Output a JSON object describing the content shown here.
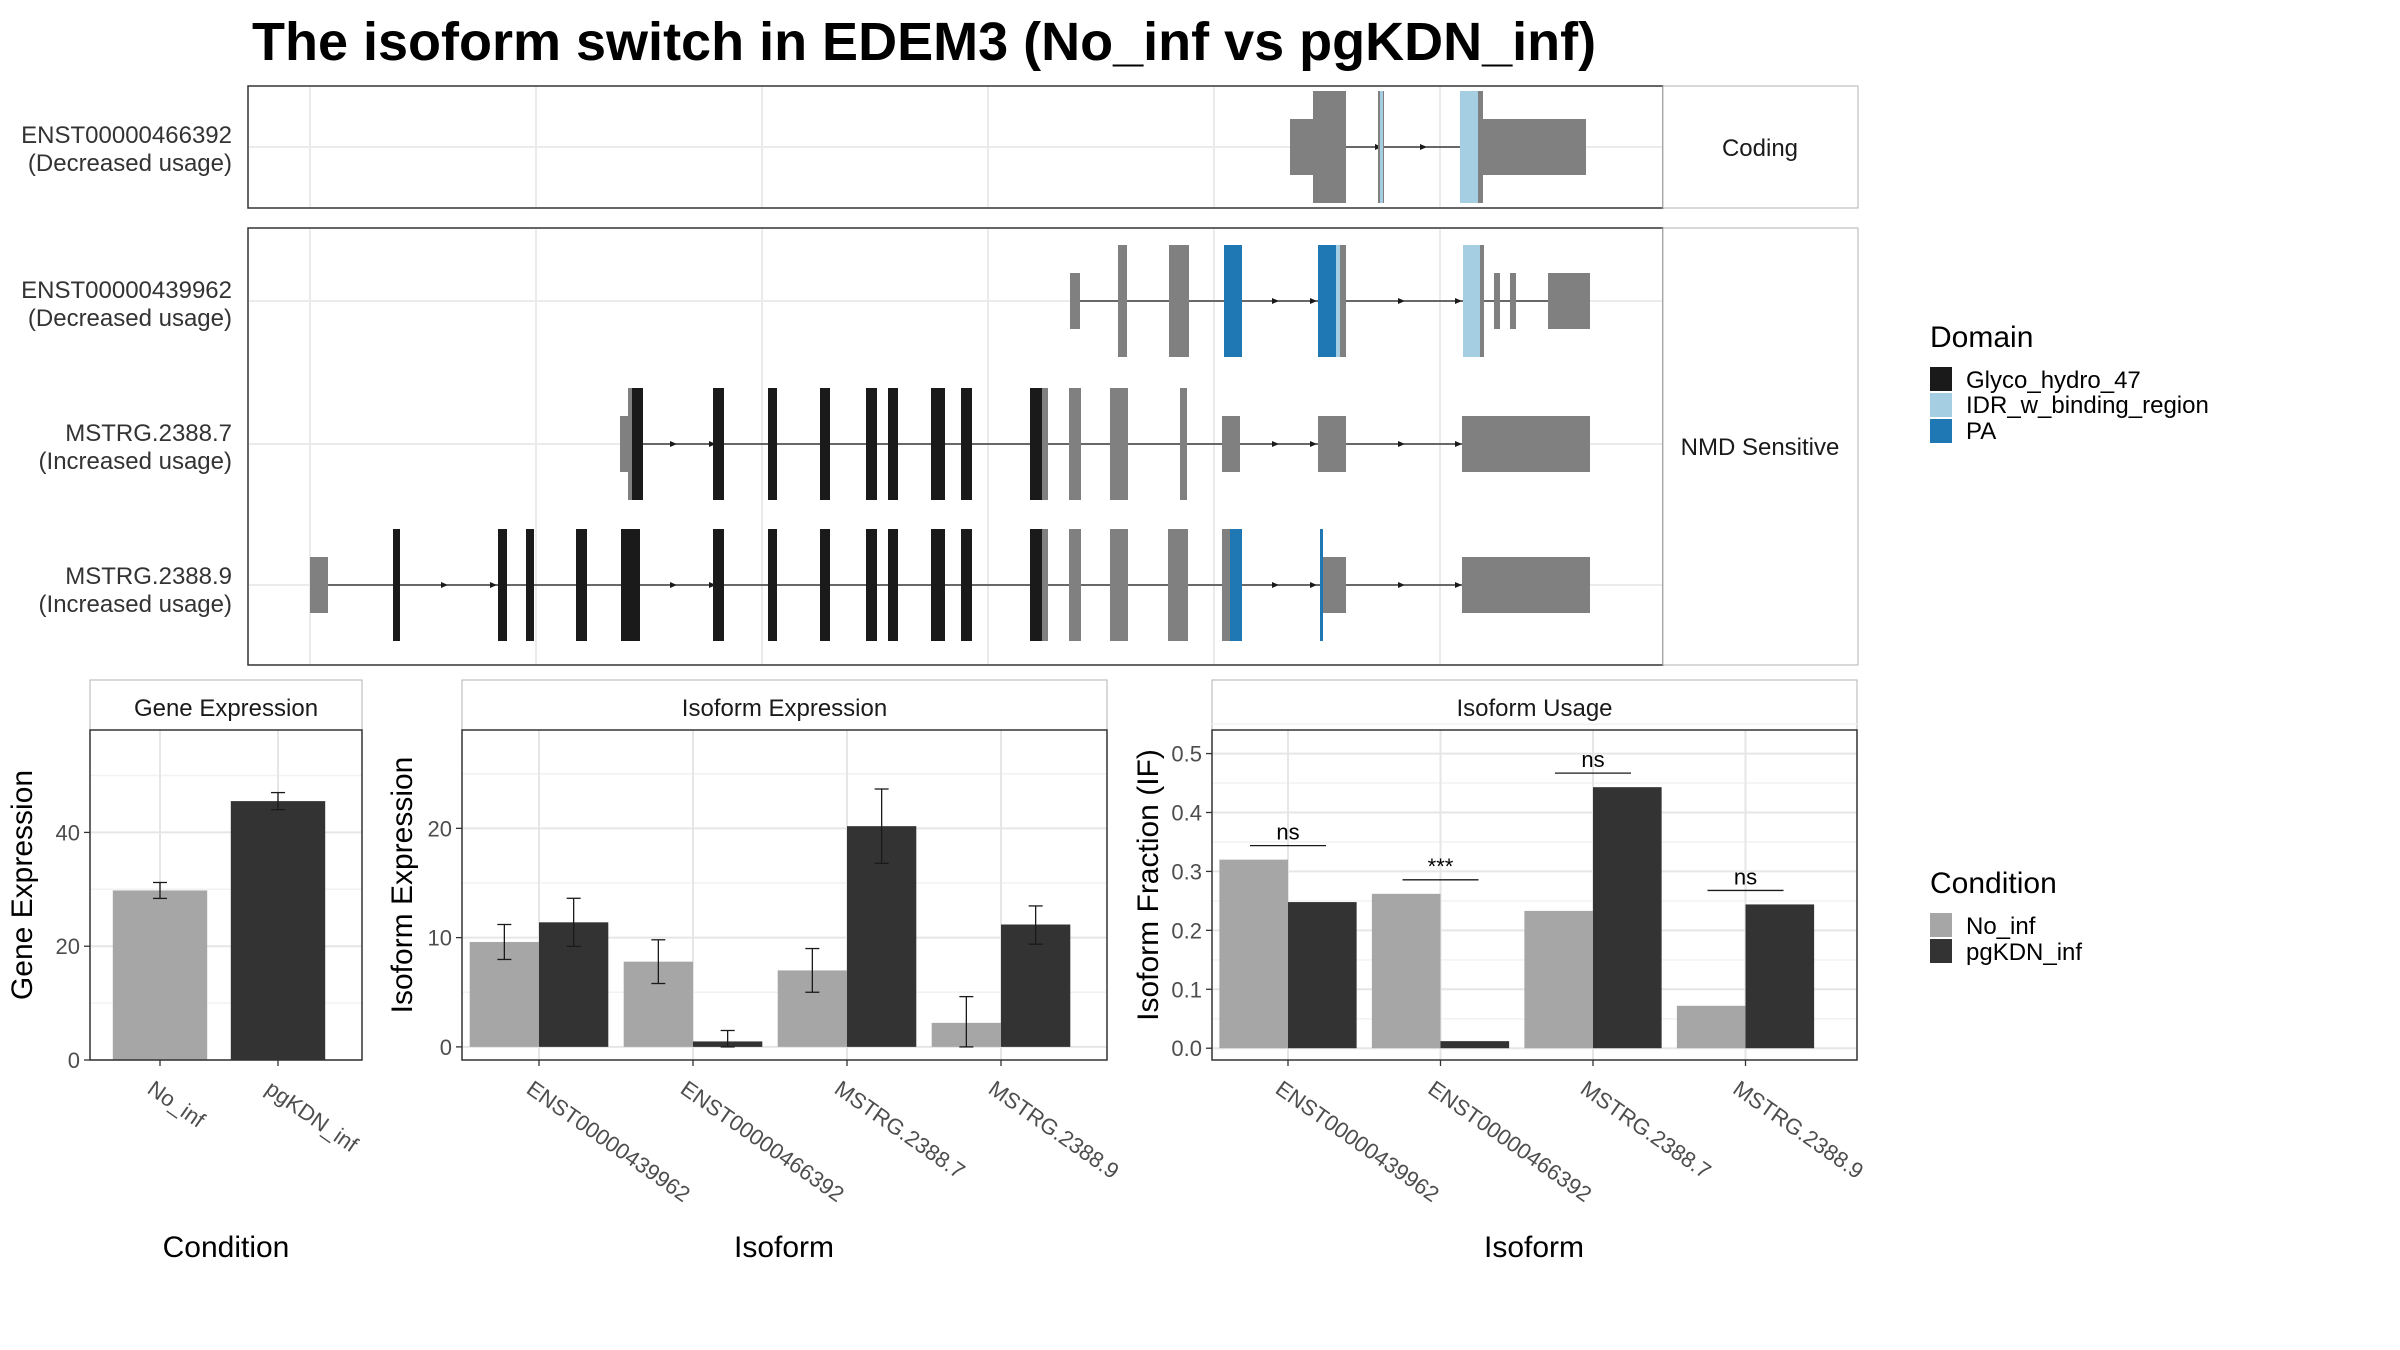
{
  "title": "The isoform switch in EDEM3 (No_inf vs pgKDN_inf)",
  "colors": {
    "exon": "#808080",
    "Glyco_hydro_47": "#1a1a1a",
    "IDR_w_binding_region": "#a6cee3",
    "PA": "#1f78b4",
    "No_inf": "#a6a6a6",
    "pgKDN_inf": "#333333"
  },
  "transcripts": [
    {
      "name": "ENST00000466392",
      "usage": "(Decreased usage)",
      "group": "Coding"
    },
    {
      "name": "ENST00000439962",
      "usage": "(Decreased usage)",
      "group": "NMD Sensitive"
    },
    {
      "name": "MSTRG.2388.7",
      "usage": "(Increased usage)",
      "group": "NMD Sensitive"
    },
    {
      "name": "MSTRG.2388.9",
      "usage": "(Increased usage)",
      "group": "NMD Sensitive"
    }
  ],
  "groups": [
    "Coding",
    "NMD Sensitive"
  ],
  "legend_domain": {
    "title": "Domain",
    "items": [
      "Glyco_hydro_47",
      "IDR_w_binding_region",
      "PA"
    ]
  },
  "legend_condition": {
    "title": "Condition",
    "items": [
      "No_inf",
      "pgKDN_inf"
    ]
  },
  "chart_data": [
    {
      "type": "bar",
      "title": "Gene Expression",
      "xlabel": "Condition",
      "ylabel": "Gene Expression",
      "categories": [
        "No_inf",
        "pgKDN_inf"
      ],
      "series": [
        {
          "name": "Gene Expression",
          "values": [
            29.8,
            45.5
          ],
          "error_low": [
            28.4,
            44.0
          ],
          "error_high": [
            31.2,
            47.0
          ]
        }
      ],
      "ylim": [
        0,
        58
      ],
      "yticks": [
        0,
        20,
        40
      ],
      "ytick_labels": [
        "0",
        "20",
        "40"
      ]
    },
    {
      "type": "bar",
      "title": "Isoform Expression",
      "xlabel": "Isoform",
      "ylabel": "Isoform Expression",
      "categories": [
        "ENST00000439962",
        "ENST00000466392",
        "MSTRG.2388.7",
        "MSTRG.2388.9"
      ],
      "series": [
        {
          "name": "No_inf",
          "values": [
            9.6,
            7.8,
            7.0,
            2.2
          ],
          "error_low": [
            8.0,
            5.8,
            5.0,
            0.0
          ],
          "error_high": [
            11.2,
            9.8,
            9.0,
            4.6
          ]
        },
        {
          "name": "pgKDN_inf",
          "values": [
            11.4,
            0.5,
            20.2,
            11.2
          ],
          "error_low": [
            9.2,
            0.0,
            16.8,
            9.4
          ],
          "error_high": [
            13.6,
            1.5,
            23.6,
            12.9
          ]
        }
      ],
      "ylim": [
        -1.2,
        29
      ],
      "yticks": [
        0,
        10,
        20
      ],
      "ytick_labels": [
        "0",
        "10",
        "20"
      ]
    },
    {
      "type": "bar",
      "title": "Isoform Usage",
      "xlabel": "Isoform",
      "ylabel": "Isoform Fraction (IF)",
      "categories": [
        "ENST00000439962",
        "ENST00000466392",
        "MSTRG.2388.7",
        "MSTRG.2388.9"
      ],
      "series": [
        {
          "name": "No_inf",
          "values": [
            0.32,
            0.262,
            0.233,
            0.072
          ]
        },
        {
          "name": "pgKDN_inf",
          "values": [
            0.248,
            0.012,
            0.443,
            0.244
          ]
        }
      ],
      "significance": [
        "ns",
        "***",
        "ns",
        "ns"
      ],
      "ylim": [
        -0.02,
        0.54
      ],
      "yticks": [
        0.0,
        0.1,
        0.2,
        0.3,
        0.4,
        0.5
      ],
      "ytick_labels": [
        "0.0",
        "0.1",
        "0.2",
        "0.3",
        "0.4",
        "0.5"
      ]
    }
  ]
}
